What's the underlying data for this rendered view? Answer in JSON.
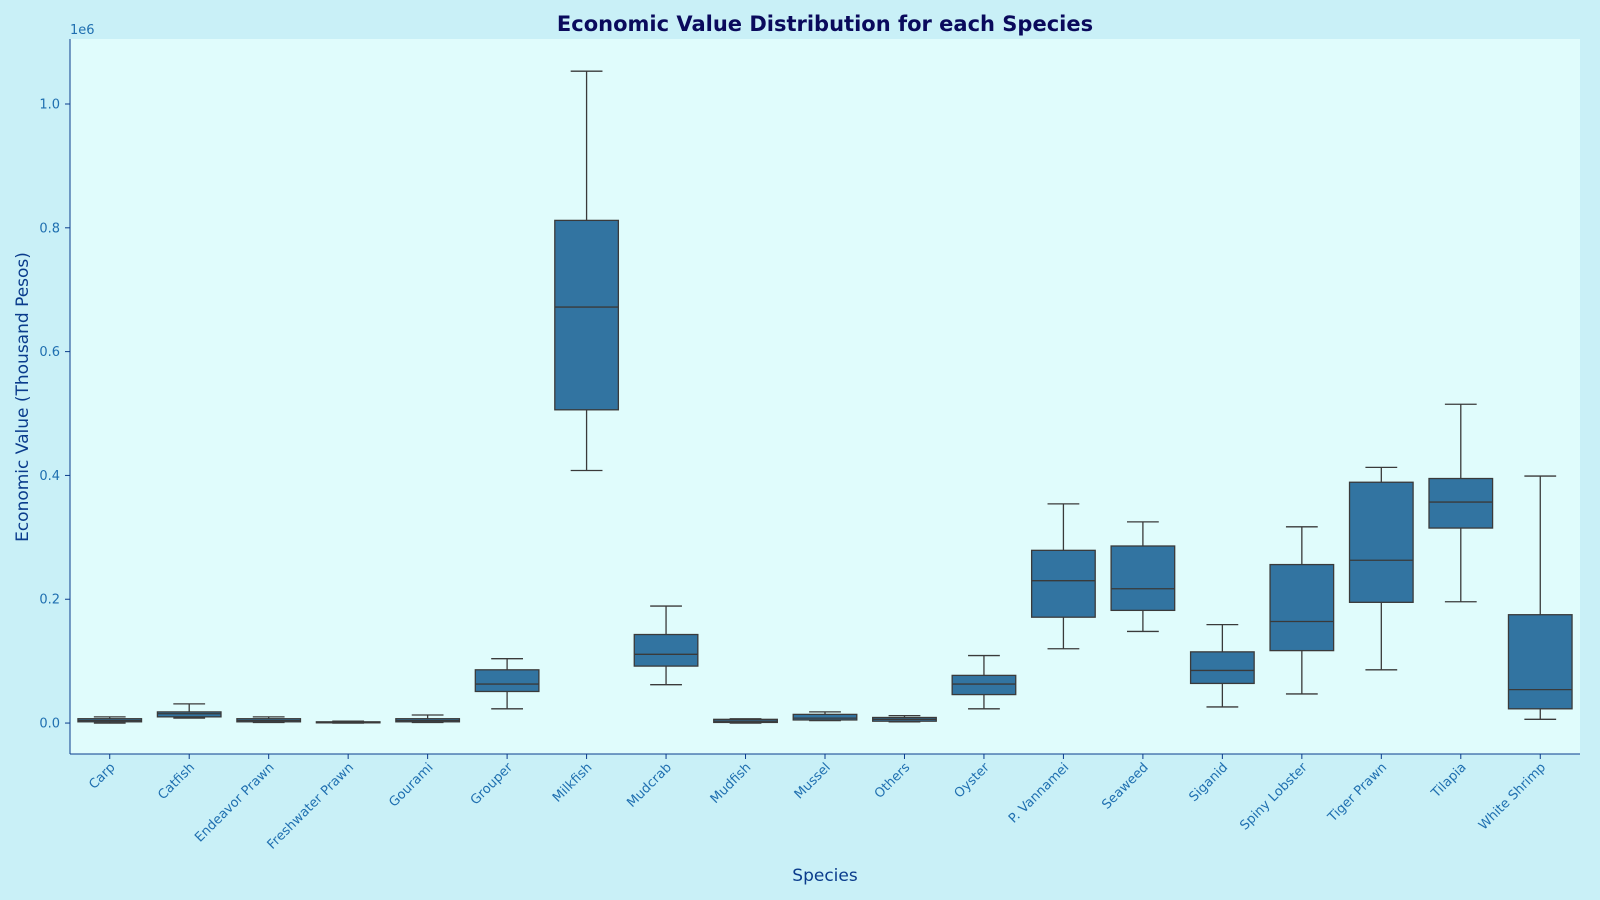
{
  "chart_data": {
    "type": "box",
    "title": "Economic Value Distribution for each Species",
    "xlabel": "Species",
    "ylabel": "Economic Value (Thousand Pesos)",
    "y_offset_label": "1e6",
    "y_scale_factor": 1000000,
    "ylim": [
      -50000,
      1105000
    ],
    "yticks": [
      0.0,
      0.2,
      0.4,
      0.6,
      0.8,
      1.0
    ],
    "ytick_labels": [
      "0.0",
      "0.2",
      "0.4",
      "0.6",
      "0.8",
      "1.0"
    ],
    "grid": false,
    "box_color": "#3274a1",
    "categories": [
      "Carp",
      "Catfish",
      "Endeavor Prawn",
      "Freshwater Prawn",
      "Gourami",
      "Grouper",
      "Milkfish",
      "Mudcrab",
      "Mudfish",
      "Mussel",
      "Others",
      "Oyster",
      "P. Vannamei",
      "Seaweed",
      "Siganid",
      "Spiny Lobster",
      "Tiger Prawn",
      "Tilapia",
      "White Shrimp"
    ],
    "boxes": [
      {
        "min": 0,
        "q1": 2000,
        "median": 4000,
        "q3": 7000,
        "max": 10000
      },
      {
        "min": 8000,
        "q1": 10000,
        "median": 15000,
        "q3": 18000,
        "max": 31000
      },
      {
        "min": 1000,
        "q1": 2000,
        "median": 4000,
        "q3": 7000,
        "max": 10000
      },
      {
        "min": 0,
        "q1": 500,
        "median": 1000,
        "q3": 2000,
        "max": 3000
      },
      {
        "min": 1000,
        "q1": 2000,
        "median": 4000,
        "q3": 7000,
        "max": 13000
      },
      {
        "min": 23000,
        "q1": 51000,
        "median": 63000,
        "q3": 86000,
        "max": 104000
      },
      {
        "min": 408000,
        "q1": 506000,
        "median": 672000,
        "q3": 812000,
        "max": 1053000
      },
      {
        "min": 62000,
        "q1": 92000,
        "median": 111000,
        "q3": 143000,
        "max": 189000
      },
      {
        "min": 0,
        "q1": 1000,
        "median": 3000,
        "q3": 6000,
        "max": 7000
      },
      {
        "min": 4000,
        "q1": 5000,
        "median": 8000,
        "q3": 14000,
        "max": 18000
      },
      {
        "min": 2000,
        "q1": 3000,
        "median": 6000,
        "q3": 9000,
        "max": 12000
      },
      {
        "min": 23000,
        "q1": 46000,
        "median": 63000,
        "q3": 77000,
        "max": 109000
      },
      {
        "min": 120000,
        "q1": 171000,
        "median": 230000,
        "q3": 279000,
        "max": 354000
      },
      {
        "min": 148000,
        "q1": 182000,
        "median": 217000,
        "q3": 286000,
        "max": 325000
      },
      {
        "min": 26000,
        "q1": 64000,
        "median": 85000,
        "q3": 115000,
        "max": 159000
      },
      {
        "min": 47000,
        "q1": 117000,
        "median": 164000,
        "q3": 256000,
        "max": 317000
      },
      {
        "min": 86000,
        "q1": 195000,
        "median": 263000,
        "q3": 389000,
        "max": 413000
      },
      {
        "min": 196000,
        "q1": 315000,
        "median": 357000,
        "q3": 395000,
        "max": 515000
      },
      {
        "min": 6000,
        "q1": 23000,
        "median": 54000,
        "q3": 175000,
        "max": 399000
      }
    ]
  }
}
